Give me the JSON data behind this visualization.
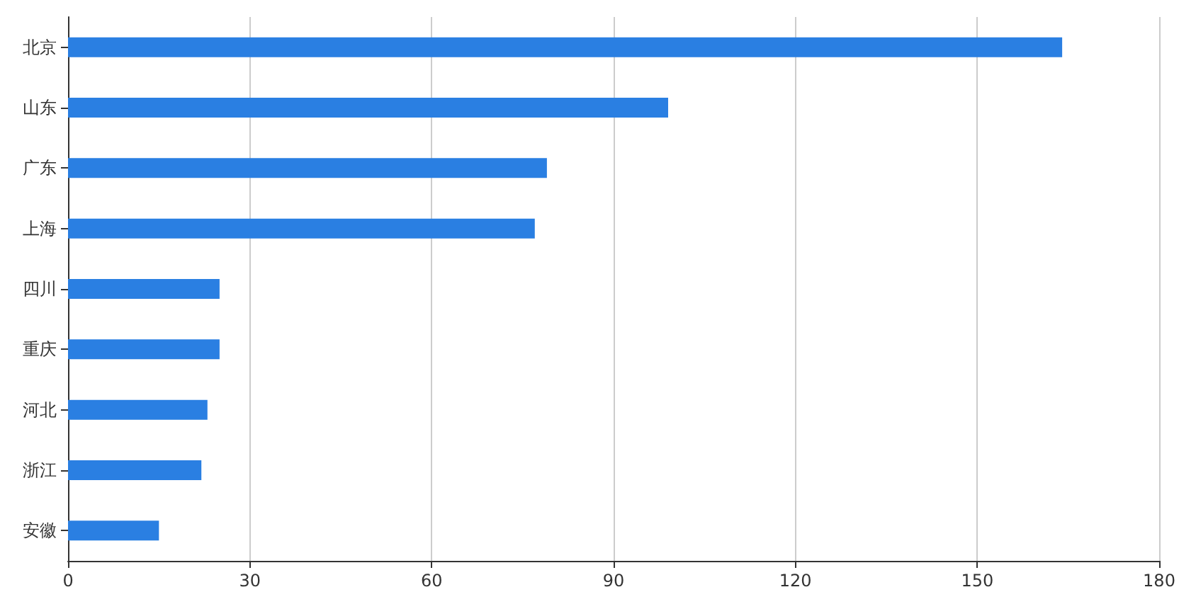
{
  "chart_data": {
    "type": "bar",
    "orientation": "horizontal",
    "categories": [
      "北京",
      "山东",
      "广东",
      "上海",
      "四川",
      "重庆",
      "河北",
      "浙江",
      "安徽"
    ],
    "values": [
      164,
      99,
      79,
      77,
      25,
      25,
      23,
      22,
      15
    ],
    "color": "#2a7fe2",
    "xlim": [
      0,
      180
    ],
    "xticks": [
      0,
      30,
      60,
      90,
      120,
      150,
      180
    ],
    "grid": "x"
  }
}
